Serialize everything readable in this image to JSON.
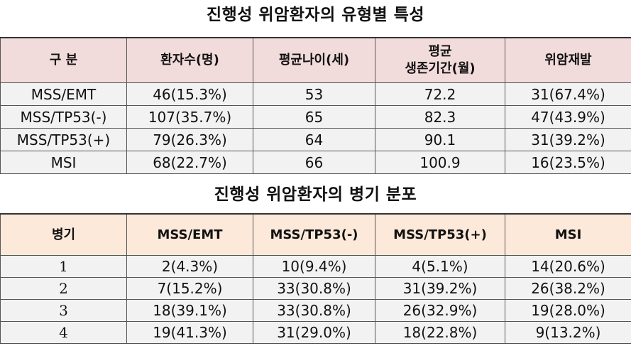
{
  "table1": {
    "title": "진행성 위암환자의 유형별 특성",
    "headers": [
      "구 분",
      "환자수(명)",
      "평균나이(세)",
      "평균",
      "생존기간(월)",
      "위암재발"
    ],
    "rows": [
      [
        "MSS/EMT",
        "46(15.3%)",
        "53",
        "72.2",
        "31(67.4%)"
      ],
      [
        "MSS/TP53(-)",
        "107(35.7%)",
        "65",
        "82.3",
        "47(43.9%)"
      ],
      [
        "MSS/TP53(+)",
        "79(26.3%)",
        "64",
        "90.1",
        "31(39.2%)"
      ],
      [
        "MSI",
        "68(22.7%)",
        "66",
        "100.9",
        "16(23.5%)"
      ]
    ]
  },
  "table2": {
    "title": "진행성 위암환자의 병기 분포",
    "headers": [
      "병기",
      "MSS/EMT",
      "MSS/TP53(-)",
      "MSS/TP53(+)",
      "MSI"
    ],
    "rows": [
      [
        "1",
        "2(4.3%)",
        "10(9.4%)",
        "4(5.1%)",
        "14(20.6%)"
      ],
      [
        "2",
        "7(15.2%)",
        "33(30.8%)",
        "31(39.2%)",
        "26(38.2%)"
      ],
      [
        "3",
        "18(39.1%)",
        "33(30.8%)",
        "26(32.9%)",
        "19(28.0%)"
      ],
      [
        "4",
        "19(41.3%)",
        "31(29.0%)",
        "18(22.8%)",
        "9(13.2%)"
      ]
    ]
  }
}
